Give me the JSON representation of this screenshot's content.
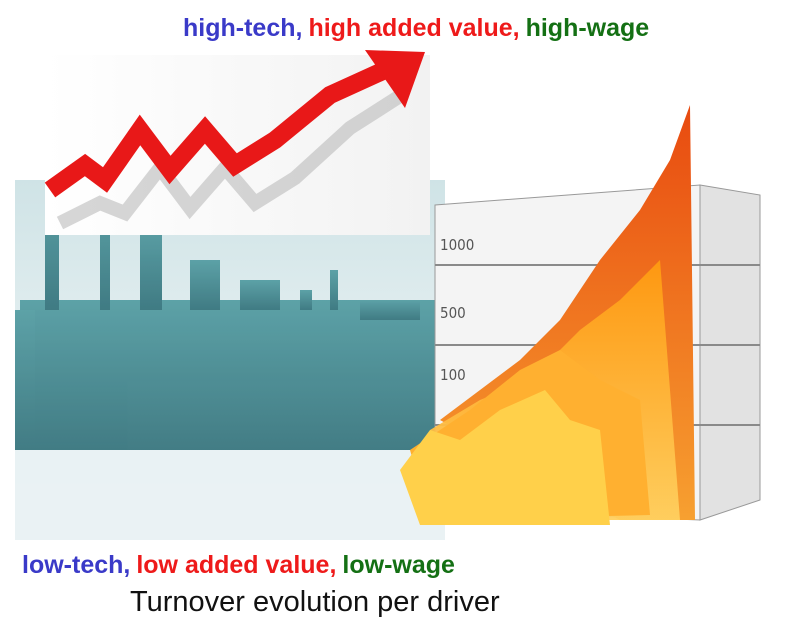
{
  "top_line": [
    "high-tech,",
    "high added value,",
    "high-wage"
  ],
  "bottom_line": [
    "low-tech,",
    "low added value,",
    "low-wage"
  ],
  "caption": "Turnover evolution per driver",
  "illustration": {
    "axis_labels": [
      "1000",
      "500",
      "100"
    ]
  }
}
